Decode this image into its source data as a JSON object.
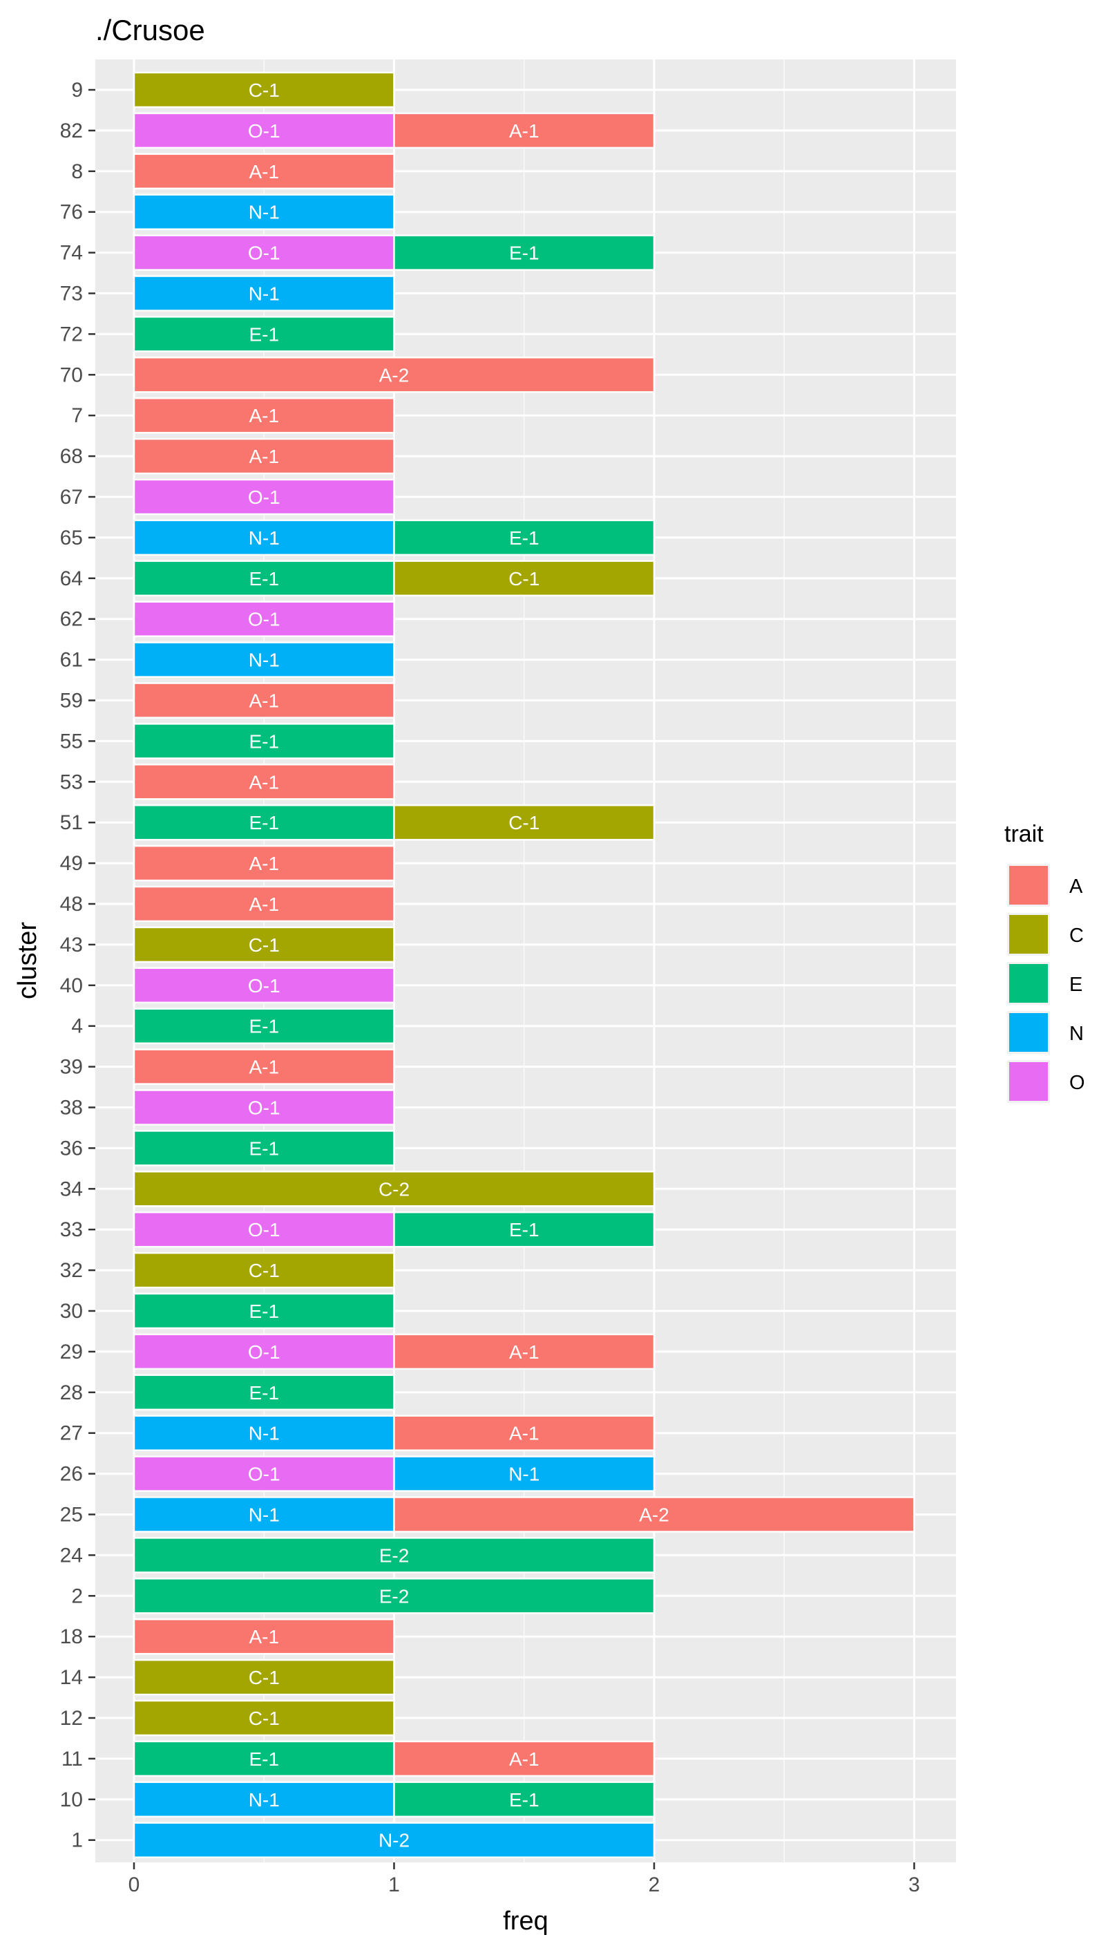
{
  "chart_data": {
    "type": "bar",
    "orientation": "horizontal",
    "stacked": true,
    "title": "./Crusoe",
    "xlabel": "freq",
    "ylabel": "cluster",
    "xlim": [
      0,
      3
    ],
    "x_ticks": [
      "0",
      "1",
      "2",
      "3"
    ],
    "grid": true,
    "legend": {
      "title": "trait",
      "position": "right"
    },
    "colors": {
      "A": "#F8766D",
      "C": "#A3A500",
      "E": "#00BF7D",
      "N": "#00B0F6",
      "O": "#E76BF3"
    },
    "categories": [
      "9",
      "82",
      "8",
      "76",
      "74",
      "73",
      "72",
      "70",
      "7",
      "68",
      "67",
      "65",
      "64",
      "62",
      "61",
      "59",
      "55",
      "53",
      "51",
      "49",
      "48",
      "43",
      "40",
      "4",
      "39",
      "38",
      "36",
      "34",
      "33",
      "32",
      "30",
      "29",
      "28",
      "27",
      "26",
      "25",
      "24",
      "2",
      "18",
      "14",
      "12",
      "11",
      "10",
      "1"
    ],
    "series": [
      {
        "name": "A",
        "values": [
          0,
          1,
          1,
          0,
          0,
          0,
          0,
          2,
          1,
          1,
          0,
          0,
          0,
          0,
          0,
          1,
          0,
          1,
          0,
          1,
          1,
          0,
          0,
          0,
          1,
          0,
          0,
          0,
          0,
          0,
          0,
          1,
          0,
          1,
          0,
          2,
          0,
          0,
          1,
          0,
          0,
          1,
          0,
          0
        ]
      },
      {
        "name": "C",
        "values": [
          1,
          0,
          0,
          0,
          0,
          0,
          0,
          0,
          0,
          0,
          0,
          0,
          1,
          0,
          0,
          0,
          0,
          0,
          1,
          0,
          0,
          1,
          0,
          0,
          0,
          0,
          0,
          2,
          0,
          1,
          0,
          0,
          0,
          0,
          0,
          0,
          0,
          0,
          0,
          1,
          1,
          0,
          0,
          0
        ]
      },
      {
        "name": "E",
        "values": [
          0,
          0,
          0,
          0,
          1,
          0,
          1,
          0,
          0,
          0,
          0,
          1,
          1,
          0,
          0,
          0,
          1,
          0,
          1,
          0,
          0,
          0,
          0,
          1,
          0,
          0,
          1,
          0,
          1,
          0,
          1,
          0,
          1,
          0,
          0,
          0,
          2,
          2,
          0,
          0,
          0,
          1,
          1,
          0
        ]
      },
      {
        "name": "N",
        "values": [
          0,
          0,
          0,
          1,
          0,
          1,
          0,
          0,
          0,
          0,
          0,
          1,
          0,
          0,
          1,
          0,
          0,
          0,
          0,
          0,
          0,
          0,
          0,
          0,
          0,
          0,
          0,
          0,
          0,
          0,
          0,
          0,
          0,
          1,
          1,
          1,
          0,
          0,
          0,
          0,
          0,
          0,
          1,
          2
        ]
      },
      {
        "name": "O",
        "values": [
          0,
          1,
          0,
          0,
          1,
          0,
          0,
          0,
          0,
          0,
          1,
          0,
          0,
          1,
          0,
          0,
          0,
          0,
          0,
          0,
          0,
          0,
          1,
          0,
          0,
          1,
          0,
          0,
          1,
          0,
          0,
          1,
          0,
          0,
          1,
          0,
          0,
          0,
          0,
          0,
          0,
          0,
          0,
          0
        ]
      }
    ],
    "segments": [
      [
        [
          "C",
          "C-1"
        ]
      ],
      [
        [
          "O",
          "O-1"
        ],
        [
          "A",
          "A-1"
        ]
      ],
      [
        [
          "A",
          "A-1"
        ]
      ],
      [
        [
          "N",
          "N-1"
        ]
      ],
      [
        [
          "O",
          "O-1"
        ],
        [
          "E",
          "E-1"
        ]
      ],
      [
        [
          "N",
          "N-1"
        ]
      ],
      [
        [
          "E",
          "E-1"
        ]
      ],
      [
        [
          "A",
          "A-2"
        ]
      ],
      [
        [
          "A",
          "A-1"
        ]
      ],
      [
        [
          "A",
          "A-1"
        ]
      ],
      [
        [
          "O",
          "O-1"
        ]
      ],
      [
        [
          "N",
          "N-1"
        ],
        [
          "E",
          "E-1"
        ]
      ],
      [
        [
          "E",
          "E-1"
        ],
        [
          "C",
          "C-1"
        ]
      ],
      [
        [
          "O",
          "O-1"
        ]
      ],
      [
        [
          "N",
          "N-1"
        ]
      ],
      [
        [
          "A",
          "A-1"
        ]
      ],
      [
        [
          "E",
          "E-1"
        ]
      ],
      [
        [
          "A",
          "A-1"
        ]
      ],
      [
        [
          "E",
          "E-1"
        ],
        [
          "C",
          "C-1"
        ]
      ],
      [
        [
          "A",
          "A-1"
        ]
      ],
      [
        [
          "A",
          "A-1"
        ]
      ],
      [
        [
          "C",
          "C-1"
        ]
      ],
      [
        [
          "O",
          "O-1"
        ]
      ],
      [
        [
          "E",
          "E-1"
        ]
      ],
      [
        [
          "A",
          "A-1"
        ]
      ],
      [
        [
          "O",
          "O-1"
        ]
      ],
      [
        [
          "E",
          "E-1"
        ]
      ],
      [
        [
          "C",
          "C-2"
        ]
      ],
      [
        [
          "O",
          "O-1"
        ],
        [
          "E",
          "E-1"
        ]
      ],
      [
        [
          "C",
          "C-1"
        ]
      ],
      [
        [
          "E",
          "E-1"
        ]
      ],
      [
        [
          "O",
          "O-1"
        ],
        [
          "A",
          "A-1"
        ]
      ],
      [
        [
          "E",
          "E-1"
        ]
      ],
      [
        [
          "N",
          "N-1"
        ],
        [
          "A",
          "A-1"
        ]
      ],
      [
        [
          "O",
          "O-1"
        ],
        [
          "N",
          "N-1"
        ]
      ],
      [
        [
          "N",
          "N-1"
        ],
        [
          "A",
          "A-2"
        ]
      ],
      [
        [
          "E",
          "E-2"
        ]
      ],
      [
        [
          "E",
          "E-2"
        ]
      ],
      [
        [
          "A",
          "A-1"
        ]
      ],
      [
        [
          "C",
          "C-1"
        ]
      ],
      [
        [
          "C",
          "C-1"
        ]
      ],
      [
        [
          "E",
          "E-1"
        ],
        [
          "A",
          "A-1"
        ]
      ],
      [
        [
          "N",
          "N-1"
        ],
        [
          "E",
          "E-1"
        ]
      ],
      [
        [
          "N",
          "N-2"
        ]
      ]
    ]
  }
}
